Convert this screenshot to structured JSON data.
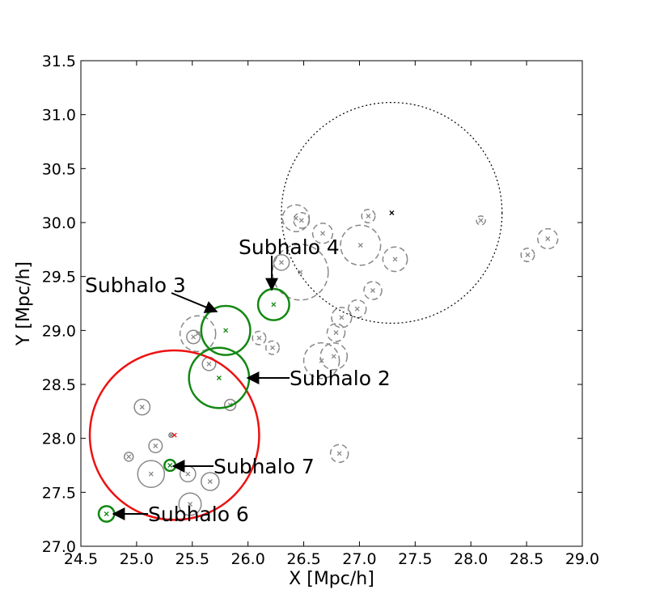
{
  "chart_data": {
    "type": "scatter",
    "xlabel": "X [Mpc/h]",
    "ylabel": "Y [Mpc/h]",
    "xlim": [
      24.5,
      29.0
    ],
    "ylim": [
      27.0,
      31.5
    ],
    "xticks": [
      "24.5",
      "25.0",
      "25.5",
      "26.0",
      "26.5",
      "27.0",
      "27.5",
      "28.0",
      "28.5",
      "29.0"
    ],
    "yticks": [
      "27.0",
      "27.5",
      "28.0",
      "28.5",
      "29.0",
      "29.5",
      "30.0",
      "30.5",
      "31.0",
      "31.5"
    ],
    "grid": false,
    "colors": {
      "host": "#ee1111",
      "tracked": "#118811",
      "other": "#888888",
      "parent": "#000000"
    },
    "parent_halo": {
      "x": 27.29,
      "y": 30.09,
      "r": 0.99
    },
    "host_halo": {
      "x": 25.34,
      "y": 28.03,
      "r": 0.76
    },
    "tracked_subhalos": [
      {
        "label": "Subhalo 2",
        "x": 25.74,
        "y": 28.56,
        "r": 0.27
      },
      {
        "label": "Subhalo 3",
        "x": 25.8,
        "y": 29.0,
        "r": 0.22
      },
      {
        "label": "Subhalo 4",
        "x": 26.23,
        "y": 29.24,
        "r": 0.14
      },
      {
        "label": "Subhalo 6",
        "x": 24.73,
        "y": 27.3,
        "r": 0.07
      },
      {
        "label": "Subhalo 7",
        "x": 25.3,
        "y": 27.75,
        "r": 0.05
      }
    ],
    "other_subhalos_solid": [
      {
        "x": 25.05,
        "y": 28.29,
        "r": 0.07
      },
      {
        "x": 25.17,
        "y": 27.93,
        "r": 0.06
      },
      {
        "x": 24.93,
        "y": 27.83,
        "r": 0.04
      },
      {
        "x": 25.13,
        "y": 27.67,
        "r": 0.12
      },
      {
        "x": 25.46,
        "y": 27.67,
        "r": 0.07
      },
      {
        "x": 25.66,
        "y": 27.6,
        "r": 0.08
      },
      {
        "x": 25.48,
        "y": 27.39,
        "r": 0.1
      },
      {
        "x": 25.65,
        "y": 28.69,
        "r": 0.06
      },
      {
        "x": 25.84,
        "y": 28.31,
        "r": 0.05
      },
      {
        "x": 25.51,
        "y": 28.94,
        "r": 0.06
      },
      {
        "x": 26.3,
        "y": 29.63,
        "r": 0.07
      },
      {
        "x": 25.31,
        "y": 28.03,
        "r": 0.02
      }
    ],
    "other_subhalos_dashed": [
      {
        "x": 25.55,
        "y": 28.97,
        "r": 0.16
      },
      {
        "x": 26.1,
        "y": 28.93,
        "r": 0.06
      },
      {
        "x": 26.22,
        "y": 28.84,
        "r": 0.06
      },
      {
        "x": 26.47,
        "y": 29.54,
        "r": 0.25
      },
      {
        "x": 26.43,
        "y": 30.04,
        "r": 0.12
      },
      {
        "x": 26.48,
        "y": 30.02,
        "r": 0.07
      },
      {
        "x": 26.67,
        "y": 29.9,
        "r": 0.09
      },
      {
        "x": 27.01,
        "y": 29.79,
        "r": 0.18
      },
      {
        "x": 27.08,
        "y": 30.06,
        "r": 0.06
      },
      {
        "x": 27.32,
        "y": 29.66,
        "r": 0.11
      },
      {
        "x": 27.12,
        "y": 29.37,
        "r": 0.08
      },
      {
        "x": 26.98,
        "y": 29.2,
        "r": 0.08
      },
      {
        "x": 26.84,
        "y": 29.12,
        "r": 0.09
      },
      {
        "x": 26.79,
        "y": 28.98,
        "r": 0.08
      },
      {
        "x": 26.77,
        "y": 28.76,
        "r": 0.12
      },
      {
        "x": 26.66,
        "y": 28.72,
        "r": 0.16
      },
      {
        "x": 26.82,
        "y": 27.86,
        "r": 0.08
      },
      {
        "x": 28.09,
        "y": 30.02,
        "r": 0.04
      },
      {
        "x": 28.51,
        "y": 29.7,
        "r": 0.06
      },
      {
        "x": 28.69,
        "y": 29.85,
        "r": 0.09
      }
    ]
  }
}
